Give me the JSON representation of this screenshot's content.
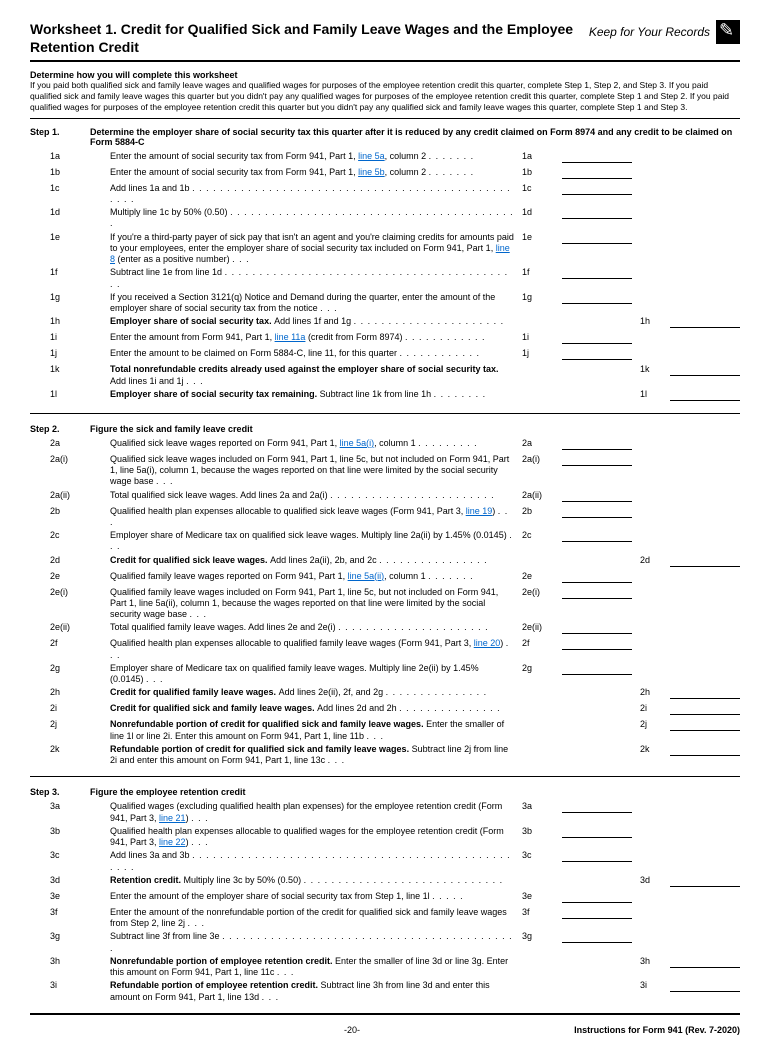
{
  "title": "Worksheet 1. Credit for Qualified Sick and Family Leave Wages and the Employee Retention Credit",
  "keep_records": "Keep for Your Records",
  "determine": {
    "heading": "Determine how you will complete this worksheet",
    "text": "If you paid both qualified sick and family leave wages and qualified wages for purposes of the employee retention credit this quarter, complete Step 1, Step 2, and Step 3. If you paid qualified sick and family leave wages this quarter but you didn't pay any qualified wages for purposes of the employee retention credit this quarter, complete Step 1 and Step 2. If you paid qualified wages for purposes of the employee retention credit this quarter but you didn't pay any qualified sick and family leave wages this quarter, complete Step 1 and Step 3."
  },
  "step1": {
    "label": "Step 1.",
    "title": "Determine the employer share of social security tax this quarter after it is reduced by any credit claimed on Form 8974 and any credit to be claimed on Form 5884-C",
    "lines": [
      {
        "n": "1a",
        "t": "Enter the amount of social security tax from Form 941, Part 1, ",
        "link": "line 5a",
        "t2": ", column 2",
        "r": "1a",
        "col": 1
      },
      {
        "n": "1b",
        "t": "Enter the amount of social security tax from Form 941, Part 1, ",
        "link": "line 5b",
        "t2": ", column 2",
        "r": "1b",
        "col": 1
      },
      {
        "n": "1c",
        "t": "Add lines 1a and 1b",
        "r": "1c",
        "col": 1
      },
      {
        "n": "1d",
        "t": "Multiply line 1c by 50% (0.50)",
        "r": "1d",
        "col": 1
      },
      {
        "n": "1e",
        "t": "If you're a third-party payer of sick pay that isn't an agent and you're claiming credits for amounts paid to your employees, enter the employer share of social security tax included on Form 941, Part 1, ",
        "link": "line 8",
        "t2": " (enter as a positive number)",
        "r": "1e",
        "col": 1
      },
      {
        "n": "1f",
        "t": "Subtract line 1e from line 1d",
        "r": "1f",
        "col": 1
      },
      {
        "n": "1g",
        "t": "If you received a Section 3121(q) Notice and Demand during the quarter, enter the amount of the employer share of social security tax from the notice",
        "r": "1g",
        "col": 1
      },
      {
        "n": "1h",
        "t": "",
        "bold": "Employer share of social security tax. ",
        "t2": "Add lines 1f and 1g",
        "r": "",
        "r2": "1h",
        "col": 2
      },
      {
        "n": "1i",
        "t": "Enter the amount from Form 941, Part 1, ",
        "link": "line 11a",
        "t2": " (credit from Form 8974)",
        "r": "1i",
        "col": 1
      },
      {
        "n": "1j",
        "t": "Enter the amount to be claimed on Form 5884-C, line 11, for this quarter",
        "r": "1j",
        "col": 1
      },
      {
        "n": "1k",
        "t": "",
        "bold": "Total nonrefundable credits already used against the employer share of social security tax. ",
        "t2": "Add lines 1i and 1j",
        "r": "",
        "r2": "1k",
        "col": 2
      },
      {
        "n": "1l",
        "t": "",
        "bold": "Employer share of social security tax remaining. ",
        "t2": "Subtract line 1k from line 1h",
        "r": "",
        "r2": "1l",
        "col": 2
      }
    ]
  },
  "step2": {
    "label": "Step 2.",
    "title": "Figure the sick and family leave credit",
    "lines": [
      {
        "n": "2a",
        "t": "Qualified sick leave wages reported on Form 941, Part 1, ",
        "link": "line 5a(i)",
        "t2": ", column 1",
        "r": "2a",
        "col": 1
      },
      {
        "n": "2a(i)",
        "t": "Qualified sick leave wages included on Form 941, Part 1, line 5c, but not included on Form 941, Part 1, line 5a(i), column 1, because the wages reported on that line were limited by the social security wage base",
        "r": "2a(i)",
        "col": 1
      },
      {
        "n": "2a(ii)",
        "t": "Total qualified sick leave wages. Add lines 2a and 2a(i)",
        "r": "2a(ii)",
        "col": 1
      },
      {
        "n": "2b",
        "t": "Qualified health plan expenses allocable to qualified sick leave wages (Form 941, Part 3, ",
        "link": "line 19",
        "t2": ")",
        "r": "2b",
        "col": 1
      },
      {
        "n": "2c",
        "t": "Employer share of Medicare tax on qualified sick leave wages. Multiply line 2a(ii) by 1.45% (0.0145)",
        "r": "2c",
        "col": 1
      },
      {
        "n": "2d",
        "t": "",
        "bold": "Credit for qualified sick leave wages. ",
        "t2": "Add lines 2a(ii), 2b, and 2c",
        "r": "",
        "r2": "2d",
        "col": 2
      },
      {
        "n": "2e",
        "t": "Qualified family leave wages reported on Form 941, Part 1, ",
        "link": "line 5a(ii)",
        "t2": ", column 1",
        "r": "2e",
        "col": 1
      },
      {
        "n": "2e(i)",
        "t": "Qualified family leave wages included on Form 941, Part 1, line 5c, but not included on Form 941, Part 1, line 5a(ii), column 1, because the wages reported on that line were limited by the social security wage base",
        "r": "2e(i)",
        "col": 1
      },
      {
        "n": "2e(ii)",
        "t": "Total qualified family leave wages. Add lines 2e and 2e(i)",
        "r": "2e(ii)",
        "col": 1
      },
      {
        "n": "2f",
        "t": "Qualified health plan expenses allocable to qualified family leave wages (Form 941, Part 3, ",
        "link": "line 20",
        "t2": ")",
        "r": "2f",
        "col": 1
      },
      {
        "n": "2g",
        "t": "Employer share of Medicare tax on qualified family leave wages. Multiply line 2e(ii) by 1.45% (0.0145)",
        "r": "2g",
        "col": 1
      },
      {
        "n": "2h",
        "t": "",
        "bold": "Credit for qualified family leave wages. ",
        "t2": "Add lines 2e(ii), 2f, and 2g",
        "r": "",
        "r2": "2h",
        "col": 2
      },
      {
        "n": "2i",
        "t": "",
        "bold": "Credit for qualified sick and family leave wages. ",
        "t2": "Add lines 2d and 2h",
        "r": "",
        "r2": "2i",
        "col": 2
      },
      {
        "n": "2j",
        "t": "",
        "bold": "Nonrefundable portion of credit for qualified sick and family leave wages. ",
        "t2": "Enter the smaller of line 1l or line 2i. Enter this amount on Form 941, Part 1, line 11b",
        "r": "",
        "r2": "2j",
        "col": 2
      },
      {
        "n": "2k",
        "t": "",
        "bold": "Refundable portion of credit for qualified sick and family leave wages. ",
        "t2": "Subtract line 2j from line 2i and enter this amount on Form 941, Part 1, line 13c",
        "r": "",
        "r2": "2k",
        "col": 2
      }
    ]
  },
  "step3": {
    "label": "Step 3.",
    "title": "Figure the employee retention credit",
    "lines": [
      {
        "n": "3a",
        "t": "Qualified wages (excluding qualified health plan expenses) for the employee retention credit (Form 941, Part 3, ",
        "link": "line 21",
        "t2": ")",
        "r": "3a",
        "col": 1
      },
      {
        "n": "3b",
        "t": "Qualified health plan expenses allocable to qualified wages for the employee retention credit (Form 941, Part 3, ",
        "link": "line 22",
        "t2": ")",
        "r": "3b",
        "col": 1
      },
      {
        "n": "3c",
        "t": "Add lines 3a and 3b",
        "r": "3c",
        "col": 1
      },
      {
        "n": "3d",
        "t": "",
        "bold": "Retention credit. ",
        "t2": "Multiply line 3c by 50% (0.50)",
        "r": "",
        "r2": "3d",
        "col": 2
      },
      {
        "n": "3e",
        "t": "Enter the amount of the employer share of social security tax from Step 1, line 1l",
        "r": "3e",
        "col": 1
      },
      {
        "n": "3f",
        "t": "Enter the amount of the nonrefundable portion of the credit for qualified sick and family leave wages from Step 2, line 2j",
        "r": "3f",
        "col": 1
      },
      {
        "n": "3g",
        "t": "Subtract line 3f from line 3e",
        "r": "3g",
        "col": 1
      },
      {
        "n": "3h",
        "t": "",
        "bold": "Nonrefundable portion of employee retention credit. ",
        "t2": "Enter the smaller of line 3d or line 3g. Enter this amount on Form 941, Part 1, line 11c",
        "r": "",
        "r2": "3h",
        "col": 2
      },
      {
        "n": "3i",
        "t": "",
        "bold": "Refundable portion of employee retention credit. ",
        "t2": "Subtract line 3h from line 3d and enter this amount on Form 941, Part 1, line 13d",
        "r": "",
        "r2": "3i",
        "col": 2
      }
    ]
  },
  "footer": {
    "page": "-20-",
    "right": "Instructions for Form 941 (Rev. 7-2020)"
  }
}
